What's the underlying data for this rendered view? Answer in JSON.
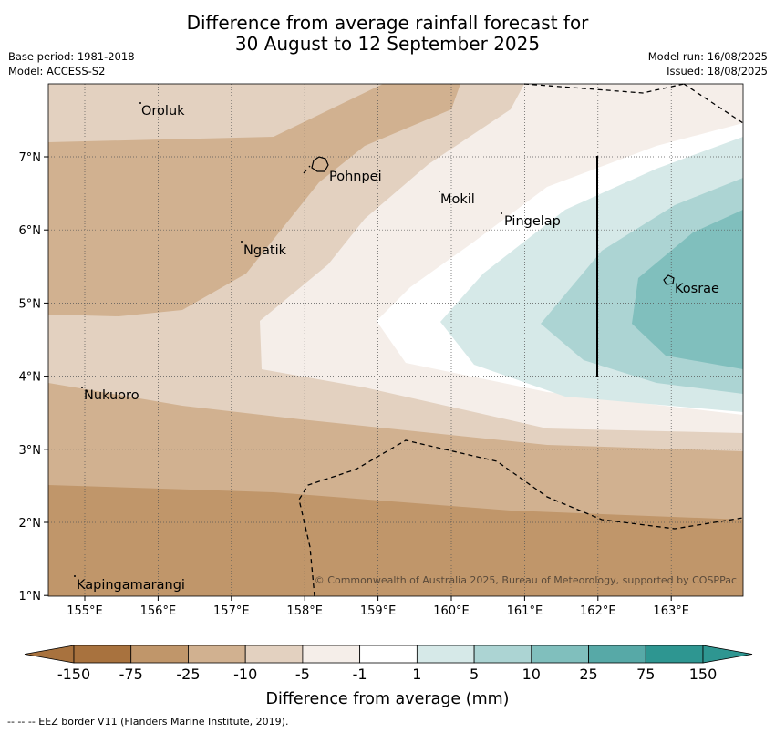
{
  "header": {
    "title_line1": "Difference from average rainfall forecast for",
    "title_line2": "30 August to 12 September 2025",
    "base_period": "Base period: 1981-2018",
    "model": "Model: ACCESS-S2",
    "model_run": "Model run: 16/08/2025",
    "issued": "Issued: 18/08/2025"
  },
  "map": {
    "lon_labels": [
      "155°E",
      "156°E",
      "157°E",
      "158°E",
      "159°E",
      "160°E",
      "161°E",
      "162°E",
      "163°E"
    ],
    "lat_labels": [
      "7°N",
      "6°N",
      "5°N",
      "4°N",
      "3°N",
      "2°N",
      "1°N"
    ],
    "places": {
      "oroluk": "Oroluk",
      "pohnpei": "Pohnpei",
      "mokil": "Mokil",
      "pingelap": "Pingelap",
      "ngatik": "Ngatik",
      "kosrae": "Kosrae",
      "nukuoro": "Nukuoro",
      "kapingamarangi": "Kapingamarangi"
    },
    "copyright": "© Commonwealth of Australia 2025, Bureau of Meteorology, supported by COSPPac",
    "colors": {
      "cat_-150": "#a8723e",
      "cat_-75": "#c0966a",
      "cat_-25": "#d1b190",
      "cat_-10": "#e3d1c0",
      "cat_-5": "#f5eee9",
      "cat_-1": "#ffffff",
      "cat_1": "#d6e9e8",
      "cat_5": "#acd4d3",
      "cat_10": "#80bfbd",
      "cat_25": "#57a9a7",
      "cat_75": "#2e9691"
    }
  },
  "colorbar": {
    "tick_labels": [
      "-150",
      "-75",
      "-25",
      "-10",
      "-5",
      "-1",
      "1",
      "5",
      "10",
      "25",
      "75",
      "150"
    ],
    "label": "Difference from average (mm)"
  },
  "footer": {
    "legend_text": "--  --  -- EEZ border V11 (Flanders Marine Institute, 2019)."
  }
}
